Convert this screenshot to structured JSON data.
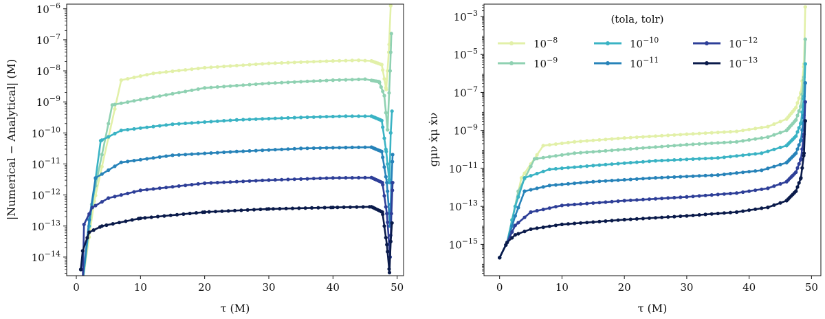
{
  "chart_data": [
    {
      "type": "line",
      "marker": "dot",
      "xlabel": "τ (M)",
      "ylabel": "|Numerical − Analytical| (M)",
      "xlim": [
        -1.5,
        51
      ],
      "ylim_log10": [
        -14.6,
        -5.85
      ],
      "yscale": "log",
      "xticks": [
        0,
        10,
        20,
        30,
        40,
        50
      ],
      "xtick_labels": [
        "0",
        "10",
        "20",
        "30",
        "40",
        "50"
      ],
      "yticks_exp": [
        -14,
        -13,
        -12,
        -11,
        -10,
        -9,
        -8,
        -7,
        -6
      ],
      "ytick_labels": [
        "10−14",
        "10−13",
        "10−12",
        "10−11",
        "10−10",
        "10−9",
        "10−8",
        "10−7",
        "10−6"
      ],
      "series": [
        {
          "name": "10−8",
          "color": "#e2f0a8",
          "points": [
            [
              1.0,
              -14.8
            ],
            [
              2.8,
              -12.2
            ],
            [
              7.0,
              -8.3
            ],
            [
              12,
              -8.08
            ],
            [
              20,
              -7.9
            ],
            [
              30,
              -7.76
            ],
            [
              40,
              -7.68
            ],
            [
              44,
              -7.66
            ],
            [
              46,
              -7.68
            ],
            [
              47.6,
              -7.8
            ],
            [
              48.3,
              -8.6
            ],
            [
              48.7,
              -7.4
            ],
            [
              49.0,
              -5.9
            ]
          ]
        },
        {
          "name": "10−9",
          "color": "#8fd1b2",
          "points": [
            [
              1.0,
              -14.8
            ],
            [
              2.4,
              -12.3
            ],
            [
              5.6,
              -9.1
            ],
            [
              12,
              -8.85
            ],
            [
              20,
              -8.55
            ],
            [
              30,
              -8.4
            ],
            [
              40,
              -8.3
            ],
            [
              45,
              -8.27
            ],
            [
              47.2,
              -8.35
            ],
            [
              48.0,
              -8.8
            ],
            [
              48.5,
              -9.9
            ],
            [
              48.9,
              -8.0
            ],
            [
              49.1,
              -6.8
            ]
          ]
        },
        {
          "name": "10−10",
          "color": "#3ab3c4",
          "points": [
            [
              1.0,
              -14.8
            ],
            [
              2.0,
              -13.0
            ],
            [
              3.8,
              -10.25
            ],
            [
              7.0,
              -9.92
            ],
            [
              15,
              -9.72
            ],
            [
              25,
              -9.58
            ],
            [
              35,
              -9.5
            ],
            [
              42,
              -9.46
            ],
            [
              46,
              -9.46
            ],
            [
              47.6,
              -9.6
            ],
            [
              48.3,
              -10.6
            ],
            [
              48.8,
              -11.6
            ],
            [
              49.0,
              -10.0
            ],
            [
              49.2,
              -9.3
            ]
          ]
        },
        {
          "name": "10−11",
          "color": "#2783b9",
          "points": [
            [
              1.0,
              -14.8
            ],
            [
              2.0,
              -12.8
            ],
            [
              3.0,
              -11.45
            ],
            [
              7.0,
              -10.95
            ],
            [
              15,
              -10.72
            ],
            [
              25,
              -10.6
            ],
            [
              35,
              -10.5
            ],
            [
              42,
              -10.47
            ],
            [
              46,
              -10.46
            ],
            [
              47.6,
              -10.6
            ],
            [
              48.4,
              -11.6
            ],
            [
              48.9,
              -13.0
            ],
            [
              49.1,
              -11.6
            ],
            [
              49.3,
              -10.7
            ]
          ]
        },
        {
          "name": "10−12",
          "color": "#2e3f98",
          "points": [
            [
              1.0,
              -14.8
            ],
            [
              1.2,
              -12.95
            ],
            [
              2.5,
              -12.4
            ],
            [
              5.0,
              -12.1
            ],
            [
              10,
              -11.85
            ],
            [
              20,
              -11.62
            ],
            [
              30,
              -11.52
            ],
            [
              40,
              -11.45
            ],
            [
              46,
              -11.44
            ],
            [
              47.7,
              -11.6
            ],
            [
              48.4,
              -12.6
            ],
            [
              48.9,
              -14.0
            ],
            [
              49.1,
              -12.6
            ],
            [
              49.3,
              -11.6
            ]
          ]
        },
        {
          "name": "10−13",
          "color": "#0a1a4a",
          "points": [
            [
              0.7,
              -14.4
            ],
            [
              1.0,
              -13.8
            ],
            [
              2.0,
              -13.2
            ],
            [
              4.0,
              -13.0
            ],
            [
              10,
              -12.75
            ],
            [
              20,
              -12.55
            ],
            [
              30,
              -12.45
            ],
            [
              40,
              -12.4
            ],
            [
              46,
              -12.38
            ],
            [
              47.7,
              -12.55
            ],
            [
              48.4,
              -13.6
            ],
            [
              48.8,
              -14.5
            ],
            [
              49.0,
              -13.5
            ],
            [
              49.2,
              -12.9
            ]
          ]
        }
      ]
    },
    {
      "type": "line",
      "marker": "dot",
      "xlabel": "τ (M)",
      "ylabel": "gμν ẋμ ẋν",
      "xlim": [
        -2.5,
        51.5
      ],
      "ylim_log10": [
        -16.65,
        -2.35
      ],
      "yscale": "log",
      "xticks": [
        0,
        10,
        20,
        30,
        40,
        50
      ],
      "xtick_labels": [
        "0",
        "10",
        "20",
        "30",
        "40",
        "50"
      ],
      "yticks_exp": [
        -15,
        -13,
        -11,
        -9,
        -7,
        -5,
        -3
      ],
      "ytick_labels": [
        "10−15",
        "10−13",
        "10−11",
        "10−9",
        "10−7",
        "10−5",
        "10−3"
      ],
      "legend_title": "(tola, tolr)",
      "legend_position": "top",
      "series": [
        {
          "name": "10−8",
          "color": "#e2f0a8",
          "points": [
            [
              0,
              -15.7
            ],
            [
              1.2,
              -14.9
            ],
            [
              3.5,
              -11.5
            ],
            [
              7.0,
              -9.8
            ],
            [
              12,
              -9.6
            ],
            [
              20,
              -9.4
            ],
            [
              30,
              -9.2
            ],
            [
              38,
              -9.05
            ],
            [
              43,
              -8.8
            ],
            [
              46,
              -8.4
            ],
            [
              47.5,
              -7.8
            ],
            [
              48.3,
              -7.0
            ],
            [
              48.8,
              -5.5
            ],
            [
              49.0,
              -2.5
            ]
          ]
        },
        {
          "name": "10−9",
          "color": "#8fd1b2",
          "points": [
            [
              0,
              -15.7
            ],
            [
              1.2,
              -14.9
            ],
            [
              3.0,
              -12.2
            ],
            [
              5.6,
              -10.5
            ],
            [
              12,
              -10.2
            ],
            [
              20,
              -10.0
            ],
            [
              30,
              -9.75
            ],
            [
              38,
              -9.6
            ],
            [
              43,
              -9.35
            ],
            [
              46,
              -9.0
            ],
            [
              47.5,
              -8.45
            ],
            [
              48.3,
              -7.7
            ],
            [
              48.8,
              -6.2
            ],
            [
              49.0,
              -4.2
            ]
          ]
        },
        {
          "name": "10−10",
          "color": "#3ab3c4",
          "points": [
            [
              0,
              -15.7
            ],
            [
              1.2,
              -14.9
            ],
            [
              2.5,
              -13.0
            ],
            [
              4.0,
              -11.5
            ],
            [
              8,
              -11.05
            ],
            [
              15,
              -10.85
            ],
            [
              25,
              -10.6
            ],
            [
              35,
              -10.45
            ],
            [
              42,
              -10.2
            ],
            [
              46,
              -9.8
            ],
            [
              47.5,
              -9.3
            ],
            [
              48.3,
              -8.6
            ],
            [
              48.8,
              -7.2
            ],
            [
              49.0,
              -5.5
            ]
          ]
        },
        {
          "name": "10−11",
          "color": "#2783b9",
          "points": [
            [
              0,
              -15.7
            ],
            [
              1.2,
              -14.9
            ],
            [
              2.5,
              -13.5
            ],
            [
              4.0,
              -12.2
            ],
            [
              8,
              -11.9
            ],
            [
              15,
              -11.7
            ],
            [
              25,
              -11.5
            ],
            [
              35,
              -11.35
            ],
            [
              42,
              -11.1
            ],
            [
              46,
              -10.7
            ],
            [
              47.5,
              -10.2
            ],
            [
              48.3,
              -9.5
            ],
            [
              48.8,
              -8.2
            ],
            [
              49.0,
              -6.5
            ]
          ]
        },
        {
          "name": "10−12",
          "color": "#2e3f98",
          "points": [
            [
              0,
              -15.7
            ],
            [
              1.2,
              -14.9
            ],
            [
              2.5,
              -14.0
            ],
            [
              5.0,
              -13.3
            ],
            [
              10,
              -12.95
            ],
            [
              20,
              -12.7
            ],
            [
              30,
              -12.5
            ],
            [
              38,
              -12.3
            ],
            [
              43,
              -12.05
            ],
            [
              46,
              -11.7
            ],
            [
              47.5,
              -11.2
            ],
            [
              48.3,
              -10.5
            ],
            [
              48.8,
              -9.2
            ],
            [
              49.0,
              -7.5
            ]
          ]
        },
        {
          "name": "10−13",
          "color": "#0a1a4a",
          "points": [
            [
              0,
              -15.7
            ],
            [
              1.2,
              -14.9
            ],
            [
              2.5,
              -14.5
            ],
            [
              5.0,
              -14.2
            ],
            [
              10,
              -13.95
            ],
            [
              20,
              -13.7
            ],
            [
              30,
              -13.5
            ],
            [
              38,
              -13.3
            ],
            [
              43,
              -13.05
            ],
            [
              46,
              -12.7
            ],
            [
              47.5,
              -12.2
            ],
            [
              48.3,
              -11.5
            ],
            [
              48.8,
              -10.2
            ],
            [
              49.0,
              -8.5
            ]
          ]
        }
      ]
    }
  ]
}
